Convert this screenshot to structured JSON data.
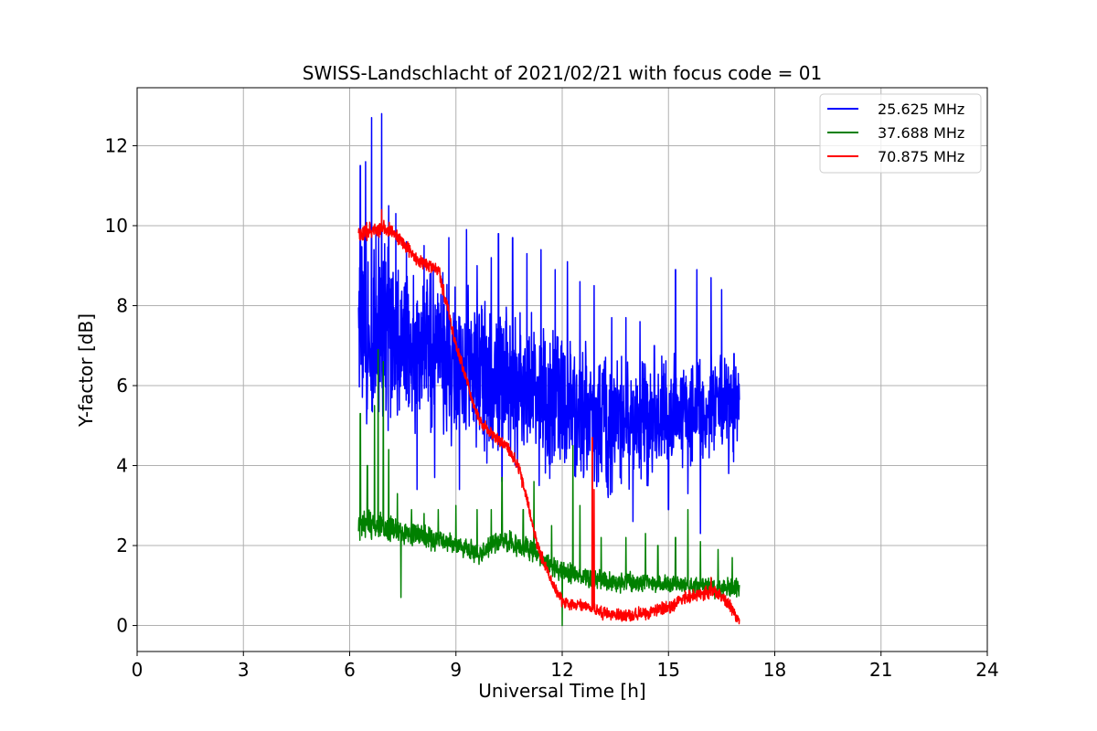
{
  "chart_data": {
    "type": "line",
    "title": "SWISS-Landschlacht of 2021/02/21 with focus code = 01",
    "xlabel": "Universal Time [h]",
    "ylabel": "Y-factor [dB]",
    "xlim": [
      0,
      24
    ],
    "ylim": [
      -0.65,
      13.45
    ],
    "xticks": [
      0,
      3,
      6,
      9,
      12,
      15,
      18,
      21,
      24
    ],
    "yticks": [
      0,
      2,
      4,
      6,
      8,
      10,
      12
    ],
    "grid": true,
    "legend_position": "top-right",
    "series": [
      {
        "name": "25.625 MHz",
        "color": "#0000ff",
        "x": [
          6.25,
          6.5,
          6.75,
          7.0,
          7.25,
          7.5,
          7.75,
          8.0,
          8.25,
          8.5,
          8.75,
          9.0,
          9.25,
          9.5,
          9.75,
          10.0,
          10.25,
          10.5,
          10.75,
          11.0,
          11.25,
          11.5,
          11.75,
          12.0,
          12.25,
          12.5,
          12.75,
          13.0,
          13.25,
          13.5,
          13.75,
          14.0,
          14.25,
          14.5,
          14.75,
          15.0,
          15.25,
          15.5,
          15.75,
          16.0,
          16.25,
          16.5,
          16.75,
          17.0
        ],
        "y": [
          7.0,
          7.1,
          7.3,
          7.2,
          7.1,
          7.0,
          6.9,
          6.9,
          6.8,
          6.8,
          6.7,
          6.6,
          6.5,
          6.4,
          6.3,
          6.2,
          6.1,
          6.0,
          6.0,
          5.9,
          5.8,
          5.7,
          5.6,
          5.5,
          5.4,
          5.3,
          5.2,
          5.1,
          5.0,
          5.0,
          5.0,
          5.0,
          5.1,
          5.2,
          5.3,
          5.4,
          5.4,
          5.3,
          5.3,
          5.3,
          5.4,
          5.4,
          5.5,
          5.5
        ],
        "spread": [
          3.0,
          3.1,
          3.2,
          3.0,
          2.8,
          2.7,
          2.6,
          2.6,
          2.5,
          2.5,
          2.4,
          2.4,
          2.4,
          2.4,
          2.3,
          2.3,
          2.3,
          2.2,
          2.2,
          2.2,
          2.2,
          2.1,
          2.1,
          2.1,
          2.0,
          2.0,
          2.0,
          1.9,
          1.9,
          1.9,
          1.9,
          1.8,
          1.8,
          1.8,
          1.8,
          1.7,
          1.7,
          1.7,
          1.6,
          1.6,
          1.6,
          1.5,
          1.5,
          1.4
        ],
        "spikes": [
          [
            6.3,
            11.5
          ],
          [
            6.45,
            11.6
          ],
          [
            6.62,
            12.7
          ],
          [
            6.9,
            12.8
          ],
          [
            7.1,
            10.5
          ],
          [
            7.3,
            10.3
          ],
          [
            7.6,
            9.6
          ],
          [
            8.1,
            9.5
          ],
          [
            8.8,
            9.7
          ],
          [
            9.3,
            9.9
          ],
          [
            9.6,
            9.0
          ],
          [
            10.0,
            9.2
          ],
          [
            10.2,
            9.8
          ],
          [
            10.6,
            9.7
          ],
          [
            11.0,
            9.3
          ],
          [
            11.4,
            9.4
          ],
          [
            11.8,
            8.9
          ],
          [
            12.15,
            9.1
          ],
          [
            12.5,
            8.6
          ],
          [
            12.9,
            8.5
          ],
          [
            13.4,
            7.7
          ],
          [
            13.8,
            7.7
          ],
          [
            14.2,
            7.6
          ],
          [
            14.6,
            7.0
          ],
          [
            15.2,
            8.9
          ],
          [
            15.8,
            8.9
          ],
          [
            16.2,
            8.7
          ],
          [
            16.5,
            8.4
          ],
          [
            16.85,
            6.8
          ],
          [
            7.9,
            3.4
          ],
          [
            8.4,
            3.7
          ],
          [
            9.1,
            3.4
          ],
          [
            10.3,
            3.6
          ],
          [
            11.35,
            3.5
          ],
          [
            12.6,
            3.7
          ],
          [
            13.3,
            3.2
          ],
          [
            14.0,
            2.6
          ],
          [
            14.4,
            3.5
          ],
          [
            15.0,
            2.9
          ],
          [
            15.55,
            3.3
          ],
          [
            15.9,
            2.3
          ],
          [
            16.7,
            3.8
          ]
        ]
      },
      {
        "name": "37.688 MHz",
        "color": "#008000",
        "x": [
          6.25,
          6.5,
          6.75,
          7.0,
          7.25,
          7.5,
          7.75,
          8.0,
          8.25,
          8.5,
          8.75,
          9.0,
          9.25,
          9.5,
          9.75,
          10.0,
          10.25,
          10.5,
          10.75,
          11.0,
          11.25,
          11.5,
          11.75,
          12.0,
          12.25,
          12.5,
          12.75,
          13.0,
          13.25,
          13.5,
          13.75,
          14.0,
          14.25,
          14.5,
          14.75,
          15.0,
          15.25,
          15.5,
          15.75,
          16.0,
          16.25,
          16.5,
          16.75,
          17.0
        ],
        "y": [
          2.5,
          2.55,
          2.5,
          2.45,
          2.4,
          2.35,
          2.3,
          2.25,
          2.2,
          2.15,
          2.1,
          2.0,
          1.95,
          1.85,
          1.8,
          2.0,
          2.1,
          2.1,
          2.0,
          1.95,
          1.8,
          1.6,
          1.5,
          1.35,
          1.3,
          1.25,
          1.2,
          1.15,
          1.1,
          1.1,
          1.1,
          1.1,
          1.1,
          1.1,
          1.05,
          1.05,
          1.0,
          1.0,
          1.0,
          0.95,
          0.95,
          0.95,
          0.95,
          0.95
        ],
        "spread": [
          0.45,
          0.45,
          0.4,
          0.4,
          0.4,
          0.35,
          0.35,
          0.35,
          0.35,
          0.35,
          0.3,
          0.3,
          0.3,
          0.3,
          0.3,
          0.3,
          0.3,
          0.3,
          0.3,
          0.3,
          0.3,
          0.3,
          0.3,
          0.3,
          0.3,
          0.3,
          0.3,
          0.3,
          0.3,
          0.3,
          0.3,
          0.3,
          0.3,
          0.3,
          0.3,
          0.3,
          0.3,
          0.3,
          0.3,
          0.3,
          0.3,
          0.3,
          0.3,
          0.25
        ],
        "spikes": [
          [
            6.3,
            5.3
          ],
          [
            6.5,
            4.0
          ],
          [
            6.7,
            5.5
          ],
          [
            6.8,
            6.9
          ],
          [
            6.95,
            6.6
          ],
          [
            7.1,
            4.4
          ],
          [
            7.35,
            3.3
          ],
          [
            7.45,
            0.7
          ],
          [
            7.75,
            2.9
          ],
          [
            8.1,
            2.8
          ],
          [
            8.5,
            2.9
          ],
          [
            9.0,
            3.0
          ],
          [
            9.6,
            2.9
          ],
          [
            10.0,
            2.9
          ],
          [
            10.3,
            3.7
          ],
          [
            10.9,
            2.9
          ],
          [
            11.2,
            3.6
          ],
          [
            11.7,
            2.5
          ],
          [
            12.0,
            0.0
          ],
          [
            12.3,
            4.5
          ],
          [
            12.5,
            3.0
          ],
          [
            13.1,
            2.2
          ],
          [
            13.8,
            2.2
          ],
          [
            14.35,
            2.3
          ],
          [
            14.7,
            2.0
          ],
          [
            15.2,
            2.2
          ],
          [
            15.55,
            2.9
          ],
          [
            15.9,
            2.1
          ],
          [
            16.4,
            1.9
          ],
          [
            16.8,
            1.7
          ]
        ]
      },
      {
        "name": "70.875 MHz",
        "color": "#ff0000",
        "x": [
          6.25,
          6.5,
          6.75,
          7.0,
          7.25,
          7.5,
          7.75,
          8.0,
          8.25,
          8.5,
          8.75,
          9.0,
          9.25,
          9.5,
          9.75,
          10.0,
          10.25,
          10.5,
          10.75,
          11.0,
          11.25,
          11.5,
          11.75,
          12.0,
          12.25,
          12.5,
          12.75,
          13.0,
          13.25,
          13.5,
          13.75,
          14.0,
          14.25,
          14.5,
          14.75,
          15.0,
          15.25,
          15.5,
          15.75,
          16.0,
          16.25,
          16.5,
          16.75,
          17.0
        ],
        "y": [
          9.8,
          9.85,
          9.9,
          9.95,
          9.8,
          9.6,
          9.3,
          9.1,
          9.0,
          8.9,
          8.0,
          7.0,
          6.3,
          5.5,
          5.0,
          4.8,
          4.6,
          4.4,
          4.0,
          3.2,
          2.2,
          1.5,
          1.0,
          0.6,
          0.5,
          0.5,
          0.45,
          0.35,
          0.3,
          0.25,
          0.25,
          0.25,
          0.3,
          0.35,
          0.4,
          0.45,
          0.55,
          0.7,
          0.75,
          0.8,
          0.85,
          0.75,
          0.5,
          0.1
        ],
        "spread": [
          0.25,
          0.25,
          0.25,
          0.25,
          0.2,
          0.2,
          0.2,
          0.2,
          0.2,
          0.2,
          0.2,
          0.2,
          0.2,
          0.2,
          0.2,
          0.2,
          0.2,
          0.2,
          0.2,
          0.2,
          0.2,
          0.2,
          0.2,
          0.2,
          0.2,
          0.2,
          0.2,
          0.2,
          0.2,
          0.2,
          0.2,
          0.2,
          0.2,
          0.2,
          0.2,
          0.2,
          0.2,
          0.2,
          0.2,
          0.2,
          0.2,
          0.2,
          0.2,
          0.15
        ],
        "spikes": [
          [
            6.9,
            10.4
          ],
          [
            7.7,
            9.5
          ],
          [
            12.85,
            4.7
          ],
          [
            12.9,
            3.4
          ],
          [
            16.2,
            1.2
          ]
        ]
      }
    ]
  }
}
